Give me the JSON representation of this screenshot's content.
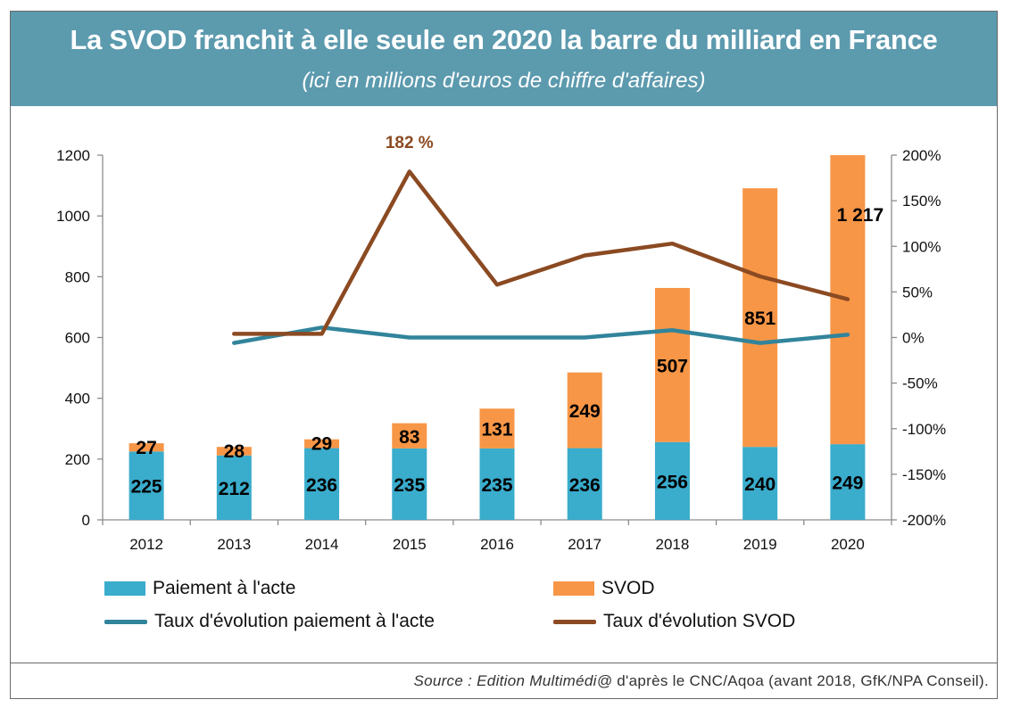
{
  "header": {
    "title": "La SVOD franchit à elle seule en 2020 la barre du milliard en France",
    "subtitle": "(ici en millions d'euros de chiffre d'affaires)"
  },
  "colors": {
    "header_bg": "#5c9aae",
    "paiement": "#3aaccc",
    "svod": "#f79646",
    "line_paiement": "#31849b",
    "line_svod": "#8b4a22",
    "annotation": "#8b4a22"
  },
  "chart_data": {
    "type": "bar",
    "stacked": true,
    "categories": [
      "2012",
      "2013",
      "2014",
      "2015",
      "2016",
      "2017",
      "2018",
      "2019",
      "2020"
    ],
    "ylim": [
      0,
      1200
    ],
    "y_ticks": [
      "0",
      "200",
      "400",
      "600",
      "800",
      "1000",
      "1200"
    ],
    "y2lim": [
      -200,
      200
    ],
    "y2_ticks": [
      "-200%",
      "-150%",
      "-100%",
      "-50%",
      "0%",
      "50%",
      "100%",
      "150%",
      "200%"
    ],
    "grid": false,
    "legend_position": "bottom",
    "series": [
      {
        "name": "Paiement à l'acte",
        "kind": "bar",
        "values": [
          225,
          212,
          236,
          235,
          235,
          236,
          256,
          240,
          249
        ],
        "labels": [
          "225",
          "212",
          "236",
          "235",
          "235",
          "236",
          "256",
          "240",
          "249"
        ]
      },
      {
        "name": "SVOD",
        "kind": "bar",
        "values": [
          27,
          28,
          29,
          83,
          131,
          249,
          507,
          851,
          1217
        ],
        "labels": [
          "27",
          "28",
          "29",
          "83",
          "131",
          "249",
          "507",
          "851",
          "1 217"
        ]
      },
      {
        "name": "Taux d'évolution paiement à l'acte",
        "kind": "line",
        "axis": "right",
        "values": [
          null,
          -6,
          11,
          0,
          0,
          0,
          8,
          -6,
          3
        ]
      },
      {
        "name": "Taux d'évolution SVOD",
        "kind": "line",
        "axis": "right",
        "values": [
          null,
          4,
          4,
          182,
          58,
          90,
          103,
          67,
          42
        ]
      }
    ],
    "annotations": [
      {
        "text": "182 %",
        "category": "2015"
      }
    ]
  },
  "legend": {
    "paiement": "Paiement à l'acte",
    "svod": "SVOD",
    "taux_paiement": "Taux d'évolution paiement à l'acte",
    "taux_svod": "Taux d'évolution SVOD"
  },
  "source": {
    "italic": "Source : Edition Multimédi@",
    "rest": " d'après le CNC/Aqoa (avant 2018, GfK/NPA Conseil)."
  }
}
